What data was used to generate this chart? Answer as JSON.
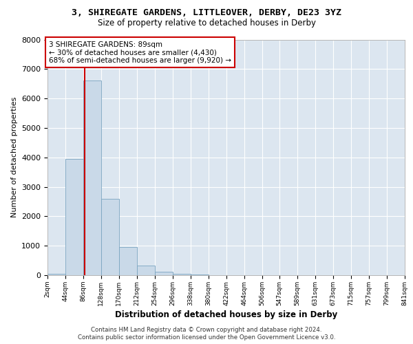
{
  "title_line1": "3, SHIREGATE GARDENS, LITTLEOVER, DERBY, DE23 3YZ",
  "title_line2": "Size of property relative to detached houses in Derby",
  "xlabel": "Distribution of detached houses by size in Derby",
  "ylabel": "Number of detached properties",
  "footnote1": "Contains HM Land Registry data © Crown copyright and database right 2024.",
  "footnote2": "Contains public sector information licensed under the Open Government Licence v3.0.",
  "annotation_line1": "3 SHIREGATE GARDENS: 89sqm",
  "annotation_line2": "← 30% of detached houses are smaller (4,430)",
  "annotation_line3": "68% of semi-detached houses are larger (9,920) →",
  "property_size_sqm": 89,
  "bar_color": "#c9d9e8",
  "bar_edge_color": "#7aa4c0",
  "vline_color": "#cc0000",
  "annotation_box_color": "#cc0000",
  "background_color": "#dce6f0",
  "ylim": [
    0,
    8000
  ],
  "bin_edges": [
    2,
    44,
    86,
    128,
    170,
    212,
    254,
    296,
    338,
    380,
    422,
    464,
    506,
    547,
    589,
    631,
    673,
    715,
    757,
    799,
    841
  ],
  "bin_labels": [
    "2sqm",
    "44sqm",
    "86sqm",
    "128sqm",
    "170sqm",
    "212sqm",
    "254sqm",
    "296sqm",
    "338sqm",
    "380sqm",
    "422sqm",
    "464sqm",
    "506sqm",
    "547sqm",
    "589sqm",
    "631sqm",
    "673sqm",
    "715sqm",
    "757sqm",
    "799sqm",
    "841sqm"
  ],
  "bar_heights": [
    50,
    3950,
    6600,
    2600,
    950,
    320,
    125,
    55,
    30,
    10,
    5,
    0,
    0,
    0,
    0,
    0,
    0,
    0,
    0,
    0
  ],
  "yticks": [
    0,
    1000,
    2000,
    3000,
    4000,
    5000,
    6000,
    7000,
    8000
  ]
}
